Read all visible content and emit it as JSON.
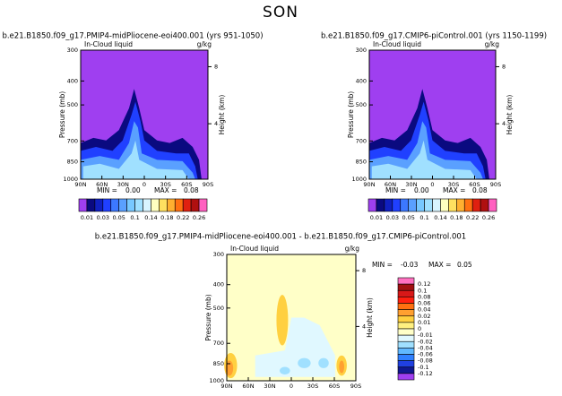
{
  "title": "SON",
  "chart_data": [
    {
      "type": "contour",
      "title": "b.e21.B1850.f09_g17.PMIP4-midPliocene-eoi400.001 (yrs 951-1050)",
      "variable_label": "In-Cloud liquid",
      "units_label": "g/kg",
      "ylabel": "Pressure (mb)",
      "y2label": "Height (km)",
      "ylim": [
        1000,
        300
      ],
      "yticks": [
        300,
        400,
        500,
        700,
        850,
        1000
      ],
      "ylog": true,
      "y2lim": [
        0.11,
        9.16
      ],
      "y2ticks": [
        4,
        8
      ],
      "xlim": [
        90,
        -90
      ],
      "xticks": [
        {
          "value": 90,
          "label": "90N"
        },
        {
          "value": 60,
          "label": "60N"
        },
        {
          "value": 30,
          "label": "30N"
        },
        0,
        {
          "value": -30,
          "label": "30S"
        },
        {
          "value": -60,
          "label": "60S"
        },
        {
          "value": -90,
          "label": "90S"
        }
      ],
      "stats": {
        "min_label": "MIN =",
        "min": "0.00",
        "max_label": "MAX =",
        "max": "0.08"
      },
      "colorbar": {
        "orientation": "horizontal",
        "colors": [
          "#9f3ff0",
          "#0a0a80",
          "#1020c0",
          "#2040ff",
          "#3c78ff",
          "#5aa0ff",
          "#78c8ff",
          "#a0e0ff",
          "#d8f4ff",
          "#ffffc0",
          "#ffe060",
          "#ffb030",
          "#ff7010",
          "#e02010",
          "#b01010",
          "#ff60c0"
        ],
        "labels": [
          0.01,
          0.03,
          0.05,
          0.1,
          0.14,
          0.18,
          0.22,
          0.26
        ]
      }
    },
    {
      "type": "contour",
      "title": "b.e21.B1850.f09_g17.CMIP6-piControl.001 (yrs 1150-1199)",
      "variable_label": "In-Cloud liquid",
      "units_label": "g/kg",
      "ylabel": "Pressure (mb)",
      "y2label": "Height (km)",
      "ylim": [
        1000,
        300
      ],
      "yticks": [
        300,
        400,
        500,
        700,
        850,
        1000
      ],
      "ylog": true,
      "y2lim": [
        0.11,
        9.16
      ],
      "y2ticks": [
        4,
        8
      ],
      "xlim": [
        90,
        -90
      ],
      "xticks": [
        {
          "value": 90,
          "label": "90N"
        },
        {
          "value": 60,
          "label": "60N"
        },
        {
          "value": 30,
          "label": "30N"
        },
        0,
        {
          "value": -30,
          "label": "30S"
        },
        {
          "value": -60,
          "label": "60S"
        },
        {
          "value": -90,
          "label": "90S"
        }
      ],
      "stats": {
        "min_label": "MIN =",
        "min": "0.00",
        "max_label": "MAX =",
        "max": "0.08"
      },
      "colorbar": {
        "orientation": "horizontal",
        "colors": [
          "#9f3ff0",
          "#0a0a80",
          "#1020c0",
          "#2040ff",
          "#3c78ff",
          "#5aa0ff",
          "#78c8ff",
          "#a0e0ff",
          "#d8f4ff",
          "#ffffc0",
          "#ffe060",
          "#ffb030",
          "#ff7010",
          "#e02010",
          "#b01010",
          "#ff60c0"
        ],
        "labels": [
          0.01,
          0.03,
          0.05,
          0.1,
          0.14,
          0.18,
          0.22,
          0.26
        ]
      }
    },
    {
      "type": "contour",
      "title": "b.e21.B1850.f09_g17.PMIP4-midPliocene-eoi400.001 - b.e21.B1850.f09_g17.CMIP6-piControl.001",
      "variable_label": "In-Cloud liquid",
      "units_label": "g/kg",
      "ylabel": "Pressure (mb)",
      "y2label": "Height (km)",
      "ylim": [
        1000,
        300
      ],
      "yticks": [
        300,
        400,
        500,
        700,
        850,
        1000
      ],
      "ylog": true,
      "y2lim": [
        0.11,
        9.16
      ],
      "y2ticks": [
        4,
        8
      ],
      "xlim": [
        90,
        -90
      ],
      "xticks": [
        {
          "value": 90,
          "label": "90N"
        },
        {
          "value": 60,
          "label": "60N"
        },
        {
          "value": 30,
          "label": "30N"
        },
        0,
        {
          "value": -30,
          "label": "30S"
        },
        {
          "value": -60,
          "label": "60S"
        },
        {
          "value": -90,
          "label": "90S"
        }
      ],
      "stats": {
        "min_label": "MIN =",
        "min": "-0.03",
        "max_label": "MAX =",
        "max": "0.05"
      },
      "colorbar": {
        "orientation": "vertical",
        "colors": [
          "#ff70c0",
          "#a01010",
          "#d81818",
          "#ff2010",
          "#ff7010",
          "#ffa030",
          "#ffd040",
          "#fff080",
          "#ffffc8",
          "#e0f8ff",
          "#a0e0ff",
          "#60b8ff",
          "#3080ff",
          "#2040e0",
          "#101890",
          "#9f3ff0"
        ],
        "labels": [
          0.12,
          0.1,
          0.08,
          0.06,
          0.04,
          0.02,
          0.01,
          0,
          -0.01,
          -0.02,
          -0.04,
          -0.06,
          -0.08,
          -0.1,
          -0.12
        ]
      }
    }
  ]
}
